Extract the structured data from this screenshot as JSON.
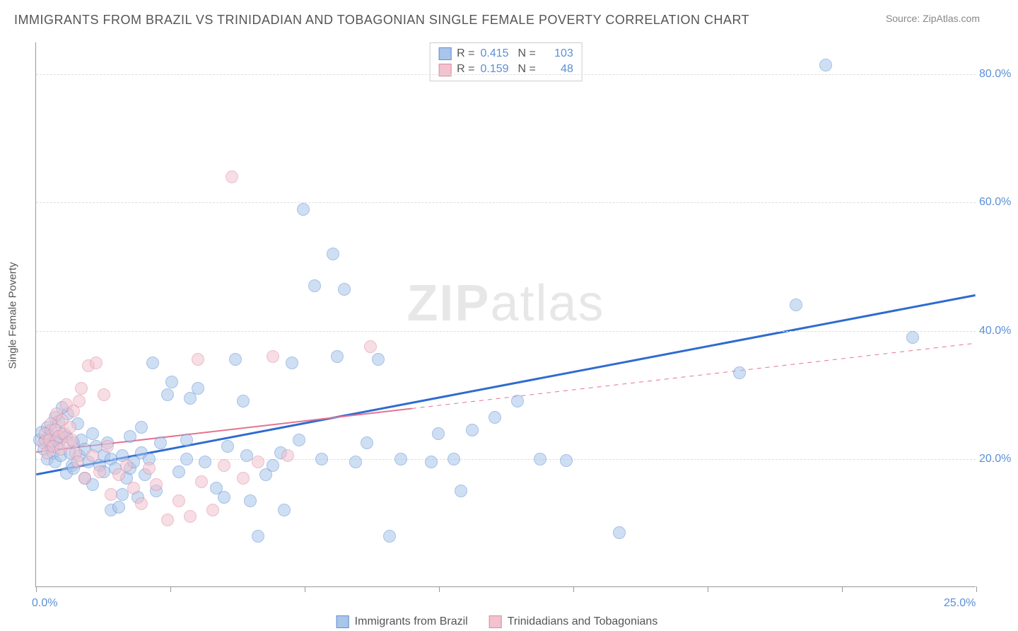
{
  "title": "IMMIGRANTS FROM BRAZIL VS TRINIDADIAN AND TOBAGONIAN SINGLE FEMALE POVERTY CORRELATION CHART",
  "source_label": "Source: ",
  "source_name": "ZipAtlas.com",
  "watermark_zip": "ZIP",
  "watermark_atlas": "atlas",
  "y_axis_label": "Single Female Poverty",
  "chart": {
    "type": "scatter",
    "background_color": "#ffffff",
    "grid_color": "#dddddd",
    "grid_dash": "4,4",
    "axis_color": "#999999",
    "tick_label_color": "#5b8fd6",
    "tick_fontsize": 16,
    "xlim": [
      0,
      25
    ],
    "ylim": [
      0,
      85
    ],
    "x_ticks": [
      0,
      3.57,
      7.14,
      10.71,
      14.29,
      17.86,
      21.43,
      25
    ],
    "x_tick_labels_shown": {
      "0": "0.0%",
      "25": "25.0%"
    },
    "y_gridlines": [
      20,
      40,
      60,
      80
    ],
    "y_tick_labels": {
      "20": "20.0%",
      "40": "40.0%",
      "60": "60.0%",
      "80": "80.0%"
    },
    "marker_radius": 9,
    "marker_opacity": 0.55,
    "marker_border_width": 1.2
  },
  "series": [
    {
      "id": "brazil",
      "label": "Immigrants from Brazil",
      "color_fill": "#a9c5ea",
      "color_stroke": "#5b8fd6",
      "R_label": "R = ",
      "R": "0.415",
      "N_label": "N = ",
      "N": "103",
      "regression": {
        "x1": 0,
        "y1": 17.5,
        "x2": 25,
        "y2": 45.5,
        "stroke": "#2f6bd0",
        "width": 3,
        "dash": "none"
      },
      "points": [
        [
          0.1,
          23.0
        ],
        [
          0.15,
          24.2
        ],
        [
          0.2,
          21.5
        ],
        [
          0.25,
          22.8
        ],
        [
          0.3,
          25.0
        ],
        [
          0.3,
          20.0
        ],
        [
          0.35,
          23.5
        ],
        [
          0.4,
          22.0
        ],
        [
          0.4,
          24.5
        ],
        [
          0.45,
          21.0
        ],
        [
          0.5,
          26.5
        ],
        [
          0.5,
          19.5
        ],
        [
          0.55,
          23.0
        ],
        [
          0.6,
          22.5
        ],
        [
          0.6,
          25.8
        ],
        [
          0.65,
          20.5
        ],
        [
          0.7,
          24.0
        ],
        [
          0.8,
          17.8
        ],
        [
          0.8,
          23.5
        ],
        [
          0.85,
          27.0
        ],
        [
          0.9,
          21.0
        ],
        [
          0.95,
          19.0
        ],
        [
          1.0,
          22.5
        ],
        [
          1.0,
          18.5
        ],
        [
          1.1,
          25.5
        ],
        [
          1.15,
          20.5
        ],
        [
          1.2,
          23.0
        ],
        [
          1.3,
          17.0
        ],
        [
          1.3,
          21.5
        ],
        [
          1.4,
          19.5
        ],
        [
          1.5,
          24.0
        ],
        [
          1.5,
          16.0
        ],
        [
          1.6,
          22.0
        ],
        [
          1.7,
          19.0
        ],
        [
          1.8,
          18.0
        ],
        [
          1.8,
          20.5
        ],
        [
          1.9,
          22.5
        ],
        [
          2.0,
          12.0
        ],
        [
          2.0,
          20.0
        ],
        [
          2.1,
          18.5
        ],
        [
          2.2,
          12.5
        ],
        [
          2.3,
          14.5
        ],
        [
          2.3,
          20.5
        ],
        [
          2.4,
          17.0
        ],
        [
          2.5,
          18.5
        ],
        [
          2.5,
          23.5
        ],
        [
          2.6,
          19.5
        ],
        [
          2.7,
          14.0
        ],
        [
          2.8,
          21.0
        ],
        [
          2.8,
          25.0
        ],
        [
          2.9,
          17.5
        ],
        [
          3.0,
          20.0
        ],
        [
          3.1,
          35.0
        ],
        [
          3.2,
          15.0
        ],
        [
          3.3,
          22.5
        ],
        [
          3.5,
          30.0
        ],
        [
          3.6,
          32.0
        ],
        [
          3.8,
          18.0
        ],
        [
          4.0,
          20.0
        ],
        [
          4.0,
          23.0
        ],
        [
          4.1,
          29.5
        ],
        [
          4.3,
          31.0
        ],
        [
          4.5,
          19.5
        ],
        [
          4.8,
          15.5
        ],
        [
          5.0,
          14.0
        ],
        [
          5.1,
          22.0
        ],
        [
          5.3,
          35.5
        ],
        [
          5.5,
          29.0
        ],
        [
          5.6,
          20.5
        ],
        [
          5.7,
          13.5
        ],
        [
          5.9,
          8.0
        ],
        [
          6.1,
          17.5
        ],
        [
          6.3,
          19.0
        ],
        [
          6.5,
          21.0
        ],
        [
          6.6,
          12.0
        ],
        [
          6.8,
          35.0
        ],
        [
          7.0,
          23.0
        ],
        [
          7.1,
          59.0
        ],
        [
          7.4,
          47.0
        ],
        [
          7.6,
          20.0
        ],
        [
          7.9,
          52.0
        ],
        [
          8.0,
          36.0
        ],
        [
          8.2,
          46.5
        ],
        [
          8.5,
          19.5
        ],
        [
          8.8,
          22.5
        ],
        [
          9.1,
          35.5
        ],
        [
          9.4,
          8.0
        ],
        [
          9.7,
          20.0
        ],
        [
          10.5,
          19.5
        ],
        [
          10.7,
          24.0
        ],
        [
          11.1,
          20.0
        ],
        [
          11.3,
          15.0
        ],
        [
          11.6,
          24.5
        ],
        [
          12.2,
          26.5
        ],
        [
          12.8,
          29.0
        ],
        [
          13.4,
          20.0
        ],
        [
          14.1,
          19.8
        ],
        [
          15.5,
          8.5
        ],
        [
          18.7,
          33.5
        ],
        [
          20.2,
          44.0
        ],
        [
          21.0,
          81.5
        ],
        [
          23.3,
          39.0
        ],
        [
          0.7,
          28.0
        ]
      ]
    },
    {
      "id": "trinidad",
      "label": "Trinidadians and Tobagonians",
      "color_fill": "#f2c2ce",
      "color_stroke": "#e089a3",
      "R_label": "R = ",
      "R": "0.159",
      "N_label": "N = ",
      "N": "48",
      "regression": {
        "x1": 0,
        "y1": 21.0,
        "x2": 25,
        "y2": 38.0,
        "stroke": "#e57390",
        "width": 2,
        "dash": "none",
        "dash_after_x": 10,
        "dash_pattern": "6,6"
      },
      "points": [
        [
          0.2,
          22.5
        ],
        [
          0.25,
          24.0
        ],
        [
          0.3,
          21.0
        ],
        [
          0.35,
          23.0
        ],
        [
          0.4,
          25.5
        ],
        [
          0.45,
          22.0
        ],
        [
          0.5,
          24.5
        ],
        [
          0.55,
          27.0
        ],
        [
          0.6,
          23.5
        ],
        [
          0.65,
          21.5
        ],
        [
          0.7,
          26.0
        ],
        [
          0.75,
          24.0
        ],
        [
          0.8,
          28.5
        ],
        [
          0.85,
          22.5
        ],
        [
          0.9,
          25.0
        ],
        [
          0.95,
          23.0
        ],
        [
          1.0,
          27.5
        ],
        [
          1.05,
          21.0
        ],
        [
          1.1,
          19.5
        ],
        [
          1.15,
          29.0
        ],
        [
          1.2,
          31.0
        ],
        [
          1.3,
          17.0
        ],
        [
          1.4,
          34.5
        ],
        [
          1.5,
          20.5
        ],
        [
          1.6,
          35.0
        ],
        [
          1.7,
          18.0
        ],
        [
          1.8,
          30.0
        ],
        [
          1.9,
          22.0
        ],
        [
          2.0,
          14.5
        ],
        [
          2.2,
          17.5
        ],
        [
          2.4,
          19.0
        ],
        [
          2.6,
          15.5
        ],
        [
          2.8,
          13.0
        ],
        [
          3.0,
          18.5
        ],
        [
          3.2,
          16.0
        ],
        [
          3.5,
          10.5
        ],
        [
          3.8,
          13.5
        ],
        [
          4.1,
          11.0
        ],
        [
          4.4,
          16.5
        ],
        [
          4.7,
          12.0
        ],
        [
          5.0,
          19.0
        ],
        [
          5.2,
          64.0
        ],
        [
          5.5,
          17.0
        ],
        [
          5.9,
          19.5
        ],
        [
          6.3,
          36.0
        ],
        [
          6.7,
          20.5
        ],
        [
          8.9,
          37.5
        ],
        [
          4.3,
          35.5
        ]
      ]
    }
  ]
}
